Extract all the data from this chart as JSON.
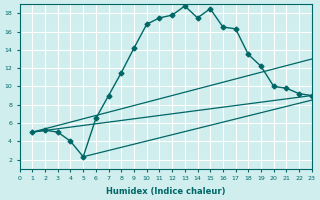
{
  "title": "",
  "xlabel": "Humidex (Indice chaleur)",
  "ylabel": "",
  "bg_color": "#d0eeee",
  "grid_color": "#ffffff",
  "line_color": "#006666",
  "xlim": [
    0,
    23
  ],
  "ylim": [
    1,
    19
  ],
  "xticks": [
    0,
    1,
    2,
    3,
    4,
    5,
    6,
    7,
    8,
    9,
    10,
    11,
    12,
    13,
    14,
    15,
    16,
    17,
    18,
    19,
    20,
    21,
    22,
    23
  ],
  "yticks": [
    2,
    4,
    6,
    8,
    10,
    12,
    14,
    16,
    18
  ],
  "line1_x": [
    1,
    2,
    3,
    4,
    5,
    6,
    7,
    8,
    9,
    10,
    11,
    12,
    13,
    14,
    15,
    16,
    17,
    18,
    19,
    20,
    21,
    22,
    23
  ],
  "line1_y": [
    5,
    5.2,
    5,
    4,
    2.3,
    6.5,
    9,
    11.5,
    14.2,
    16.8,
    17.5,
    17.8,
    18.8,
    17.5,
    18.5,
    16.5,
    16.3,
    13.5,
    12.2,
    10,
    9.8,
    9.2,
    9.0
  ],
  "line2_x": [
    1,
    23
  ],
  "line2_y": [
    5,
    9
  ],
  "line3_x": [
    1,
    23
  ],
  "line3_y": [
    5,
    13
  ],
  "line4_x": [
    5,
    23
  ],
  "line4_y": [
    2.3,
    8.5
  ]
}
